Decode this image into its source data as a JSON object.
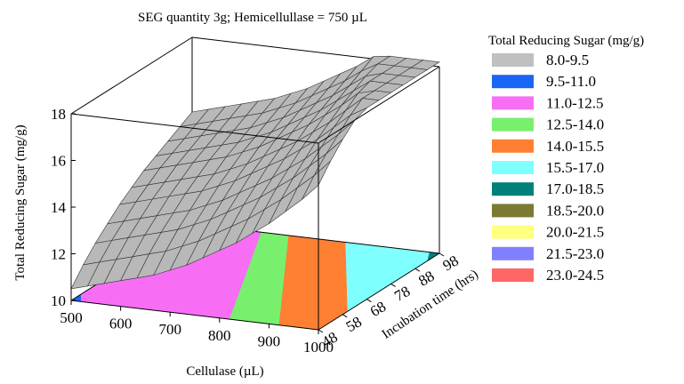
{
  "chart_data": {
    "type": "surface3d",
    "title": "SEG quantity 3g; Hemicellullase = 750 µL",
    "xlabel": "Cellulase (µL)",
    "ylabel": "Incubation time (hrs)",
    "zlabel": "Total Reducing Sugar (mg/g)",
    "x_ticks": [
      "500",
      "600",
      "700",
      "800",
      "900",
      "1000"
    ],
    "y_ticks": [
      "48",
      "58",
      "68",
      "78",
      "88",
      "98"
    ],
    "z_ticks": [
      "10",
      "12",
      "14",
      "16",
      "18"
    ],
    "xlim": [
      500,
      1000
    ],
    "ylim": [
      48,
      98
    ],
    "zlim": [
      10,
      18
    ],
    "surface_z": [
      [
        10.5,
        10.7,
        10.9,
        11.1,
        11.3,
        11.5,
        11.8,
        12.1,
        12.5,
        12.9,
        13.3,
        13.8,
        14.3,
        14.9,
        15.5,
        16.2
      ],
      [
        11.2,
        11.4,
        11.6,
        11.8,
        12.0,
        12.2,
        12.5,
        12.8,
        13.2,
        13.6,
        14.0,
        14.5,
        15.0,
        15.6,
        16.2,
        16.9
      ],
      [
        11.8,
        12.0,
        12.2,
        12.4,
        12.6,
        12.8,
        13.1,
        13.4,
        13.8,
        14.2,
        14.6,
        15.1,
        15.6,
        16.2,
        16.8,
        17.5
      ],
      [
        12.3,
        12.5,
        12.7,
        12.9,
        13.1,
        13.3,
        13.6,
        13.9,
        14.3,
        14.7,
        15.1,
        15.6,
        16.1,
        16.7,
        17.3,
        18.0
      ],
      [
        12.8,
        13.0,
        13.2,
        13.4,
        13.6,
        13.8,
        14.1,
        14.4,
        14.8,
        15.2,
        15.6,
        16.1,
        16.6,
        17.2,
        17.8,
        18.5
      ],
      [
        13.2,
        13.4,
        13.6,
        13.8,
        14.0,
        14.2,
        14.5,
        14.8,
        15.2,
        15.6,
        16.0,
        16.5,
        17.0,
        17.6,
        18.2,
        18.9
      ],
      [
        13.6,
        13.8,
        14.0,
        14.2,
        14.4,
        14.6,
        14.9,
        15.2,
        15.6,
        16.0,
        16.4,
        16.9,
        17.4,
        18.0,
        18.6,
        19.3
      ],
      [
        13.9,
        14.1,
        14.3,
        14.5,
        14.7,
        14.9,
        15.2,
        15.5,
        15.9,
        16.3,
        16.7,
        17.2,
        17.7,
        18.3,
        18.9,
        19.6
      ],
      [
        14.2,
        14.4,
        14.6,
        14.8,
        15.0,
        15.2,
        15.5,
        15.8,
        16.2,
        16.6,
        17.0,
        17.5,
        18.0,
        18.6,
        19.2,
        19.9
      ],
      [
        14.5,
        14.7,
        14.9,
        15.1,
        15.3,
        15.5,
        15.8,
        16.1,
        16.5,
        16.9,
        17.3,
        17.8,
        18.3,
        18.9,
        19.5,
        20.2
      ],
      [
        14.8,
        15.0,
        15.2,
        15.4,
        15.6,
        15.8,
        16.1,
        16.4,
        16.8,
        17.2,
        17.6,
        18.1,
        18.6,
        19.2,
        19.8,
        20.5
      ]
    ],
    "contour_zones": [
      {
        "range": "9.5-11.0",
        "color": "#1a66f2",
        "boundary_at_x1000_y": null,
        "corner": "x500-y48"
      },
      {
        "range": "11.0-12.5",
        "color": "#f76ef5",
        "boundary_x_at_y48": 820
      },
      {
        "range": "12.5-14.0",
        "color": "#78f06e"
      },
      {
        "range": "14.0-15.5",
        "color": "#ff8033"
      },
      {
        "range": "15.5-17.0",
        "color": "#80ffff"
      },
      {
        "range": "17.0-18.5",
        "color": "#00807a"
      }
    ],
    "legend": {
      "title": "Total Reducing Sugar (mg/g)",
      "placement": "right",
      "items": [
        {
          "label": "8.0-9.5",
          "color": "#c0c0c0"
        },
        {
          "label": "9.5-11.0",
          "color": "#1a66f2"
        },
        {
          "label": "11.0-12.5",
          "color": "#f76ef5"
        },
        {
          "label": "12.5-14.0",
          "color": "#78f06e"
        },
        {
          "label": "14.0-15.5",
          "color": "#ff8033"
        },
        {
          "label": "15.5-17.0",
          "color": "#80ffff"
        },
        {
          "label": "17.0-18.5",
          "color": "#00807a"
        },
        {
          "label": "18.5-20.0",
          "color": "#7a7a33"
        },
        {
          "label": "20.0-21.5",
          "color": "#ffff80"
        },
        {
          "label": "21.5-23.0",
          "color": "#8080ff"
        },
        {
          "label": "23.0-24.5",
          "color": "#ff6666"
        }
      ]
    },
    "surface_color": "#b8b8b8",
    "grid": "wireframe on surface; bounding box drawn"
  }
}
